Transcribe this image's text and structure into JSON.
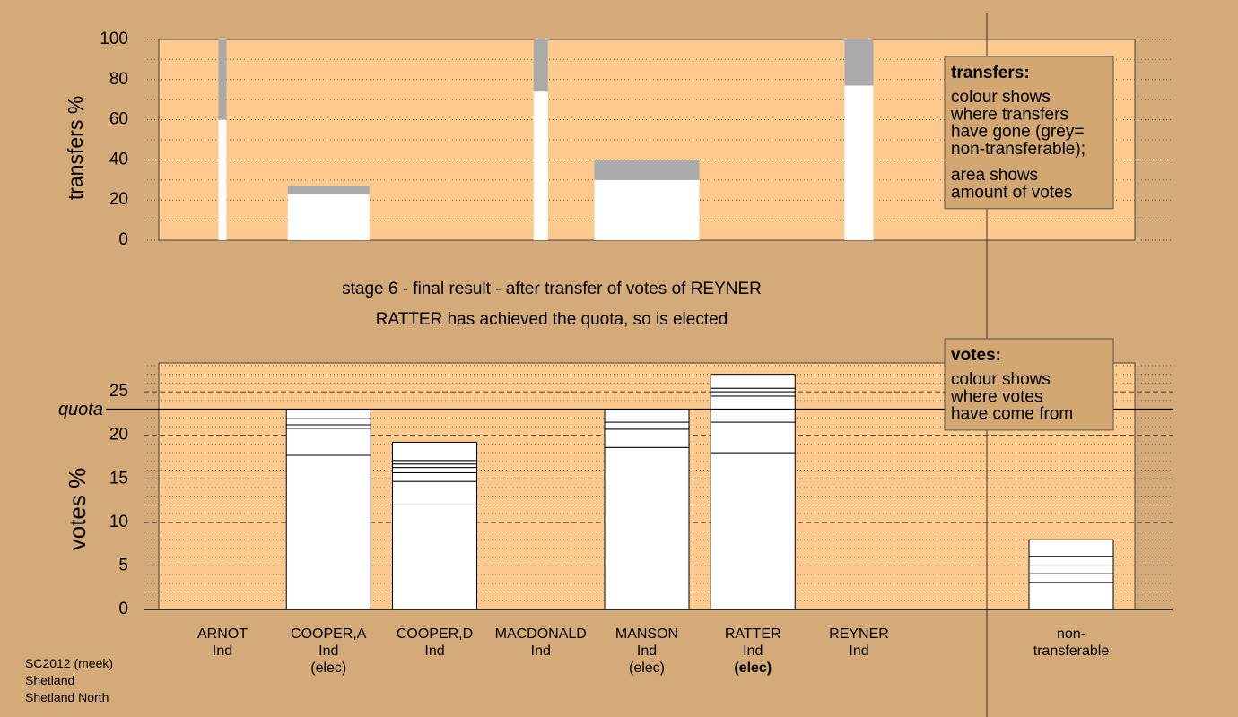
{
  "chart_data": [
    {
      "type": "bar",
      "ylabel": "transfers %",
      "values": [
        60,
        23,
        null,
        74,
        30,
        null,
        77,
        null
      ],
      "grey_values": [
        40,
        4,
        null,
        26,
        10,
        null,
        23,
        null
      ],
      "widths": [
        9,
        91,
        null,
        16,
        117,
        null,
        32,
        null
      ],
      "color": "#ffffff",
      "grey_color": "#aaaaaa",
      "ylim": [
        0,
        100
      ],
      "yticks": [
        0,
        20,
        40,
        60,
        80,
        100
      ],
      "yminor": [
        10,
        30,
        50,
        70,
        90
      ],
      "legend": {
        "title": "transfers:",
        "paragraphs": [
          [
            "colour shows",
            "where transfers",
            "have gone (grey=",
            "non-transferable);"
          ],
          [
            "area shows",
            "amount of votes"
          ]
        ]
      }
    },
    {
      "type": "stacked-bar",
      "ylabel": "votes %",
      "title": "stage 6 - final result - after transfer of votes of REYNER",
      "subtitle": "RATTER has achieved the quota, so is elected",
      "categories": [
        "ARNOT",
        "COOPER,A",
        "COOPER,D",
        "MACDONALD",
        "MANSON",
        "RATTER",
        "REYNER",
        "non-\ntransferable"
      ],
      "parties": [
        "Ind",
        "Ind",
        "Ind",
        "Ind",
        "Ind",
        "Ind",
        "Ind",
        null
      ],
      "status": [
        null,
        "(elec)",
        null,
        null,
        "(elec)",
        "(elec)",
        null,
        null
      ],
      "highlighted_category": "RATTER",
      "segments": [
        [
          0
        ],
        [
          17.7,
          3.1,
          0.4,
          0.7,
          1.1
        ],
        [
          12.0,
          2.7,
          1.0,
          0.6,
          0.4,
          0.4,
          2.1
        ],
        [
          0
        ],
        [
          18.6,
          2.1,
          0.8,
          1.5
        ],
        [
          18.0,
          3.5,
          3.0,
          0.5,
          0.4,
          1.6
        ],
        [
          0
        ],
        [
          3.1,
          1.0,
          0.9,
          1.1,
          1.9
        ]
      ],
      "color": "#ffffff",
      "quota": 23,
      "quota_label": "quota",
      "ylim": [
        0,
        28.3
      ],
      "yticks": [
        0,
        5,
        10,
        15,
        20,
        25
      ],
      "yminor": [
        1,
        2,
        3,
        4,
        6,
        7,
        8,
        9,
        11,
        12,
        13,
        14,
        16,
        17,
        18,
        19,
        21,
        22,
        23,
        24,
        26,
        27,
        28
      ],
      "legend": {
        "title": "votes:",
        "paragraphs": [
          [
            "colour shows",
            "where votes",
            "have come from"
          ]
        ]
      },
      "footer": [
        "SC2012 (meek)",
        "Shetland",
        "Shetland North"
      ]
    }
  ]
}
